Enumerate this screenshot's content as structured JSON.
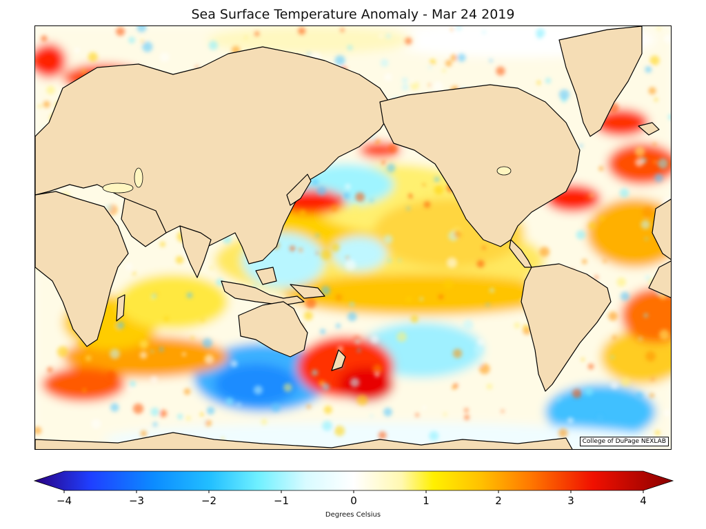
{
  "title": "Sea Surface Temperature Anomaly - Mar 24 2019",
  "credit": "College of DuPage NEXLAB",
  "legend": {
    "label": "Degrees Celsius",
    "min": -4,
    "max": 4,
    "ticks": [
      "−4",
      "−3",
      "−2",
      "−1",
      "0",
      "1",
      "2",
      "3",
      "4"
    ],
    "tick_values": [
      -4,
      -3,
      -2,
      -1,
      0,
      1,
      2,
      3,
      4
    ],
    "stops": [
      {
        "value": -4,
        "color": "#2a0080"
      },
      {
        "value": -3.3,
        "color": "#1f3fff"
      },
      {
        "value": -2.5,
        "color": "#0c8cff"
      },
      {
        "value": -1.8,
        "color": "#22bfff"
      },
      {
        "value": -1.2,
        "color": "#6ff0ff"
      },
      {
        "value": -0.6,
        "color": "#d8fbff"
      },
      {
        "value": 0,
        "color": "#ffffff"
      },
      {
        "value": 0.6,
        "color": "#fff8b0"
      },
      {
        "value": 1,
        "color": "#fff000"
      },
      {
        "value": 1.6,
        "color": "#ffc000"
      },
      {
        "value": 2.2,
        "color": "#ff7a00"
      },
      {
        "value": 3,
        "color": "#f01000"
      },
      {
        "value": 4,
        "color": "#8a0000"
      }
    ]
  },
  "colors": {
    "land": "#f5ddb5",
    "coast": "#000000",
    "background": "#ffffff"
  }
}
